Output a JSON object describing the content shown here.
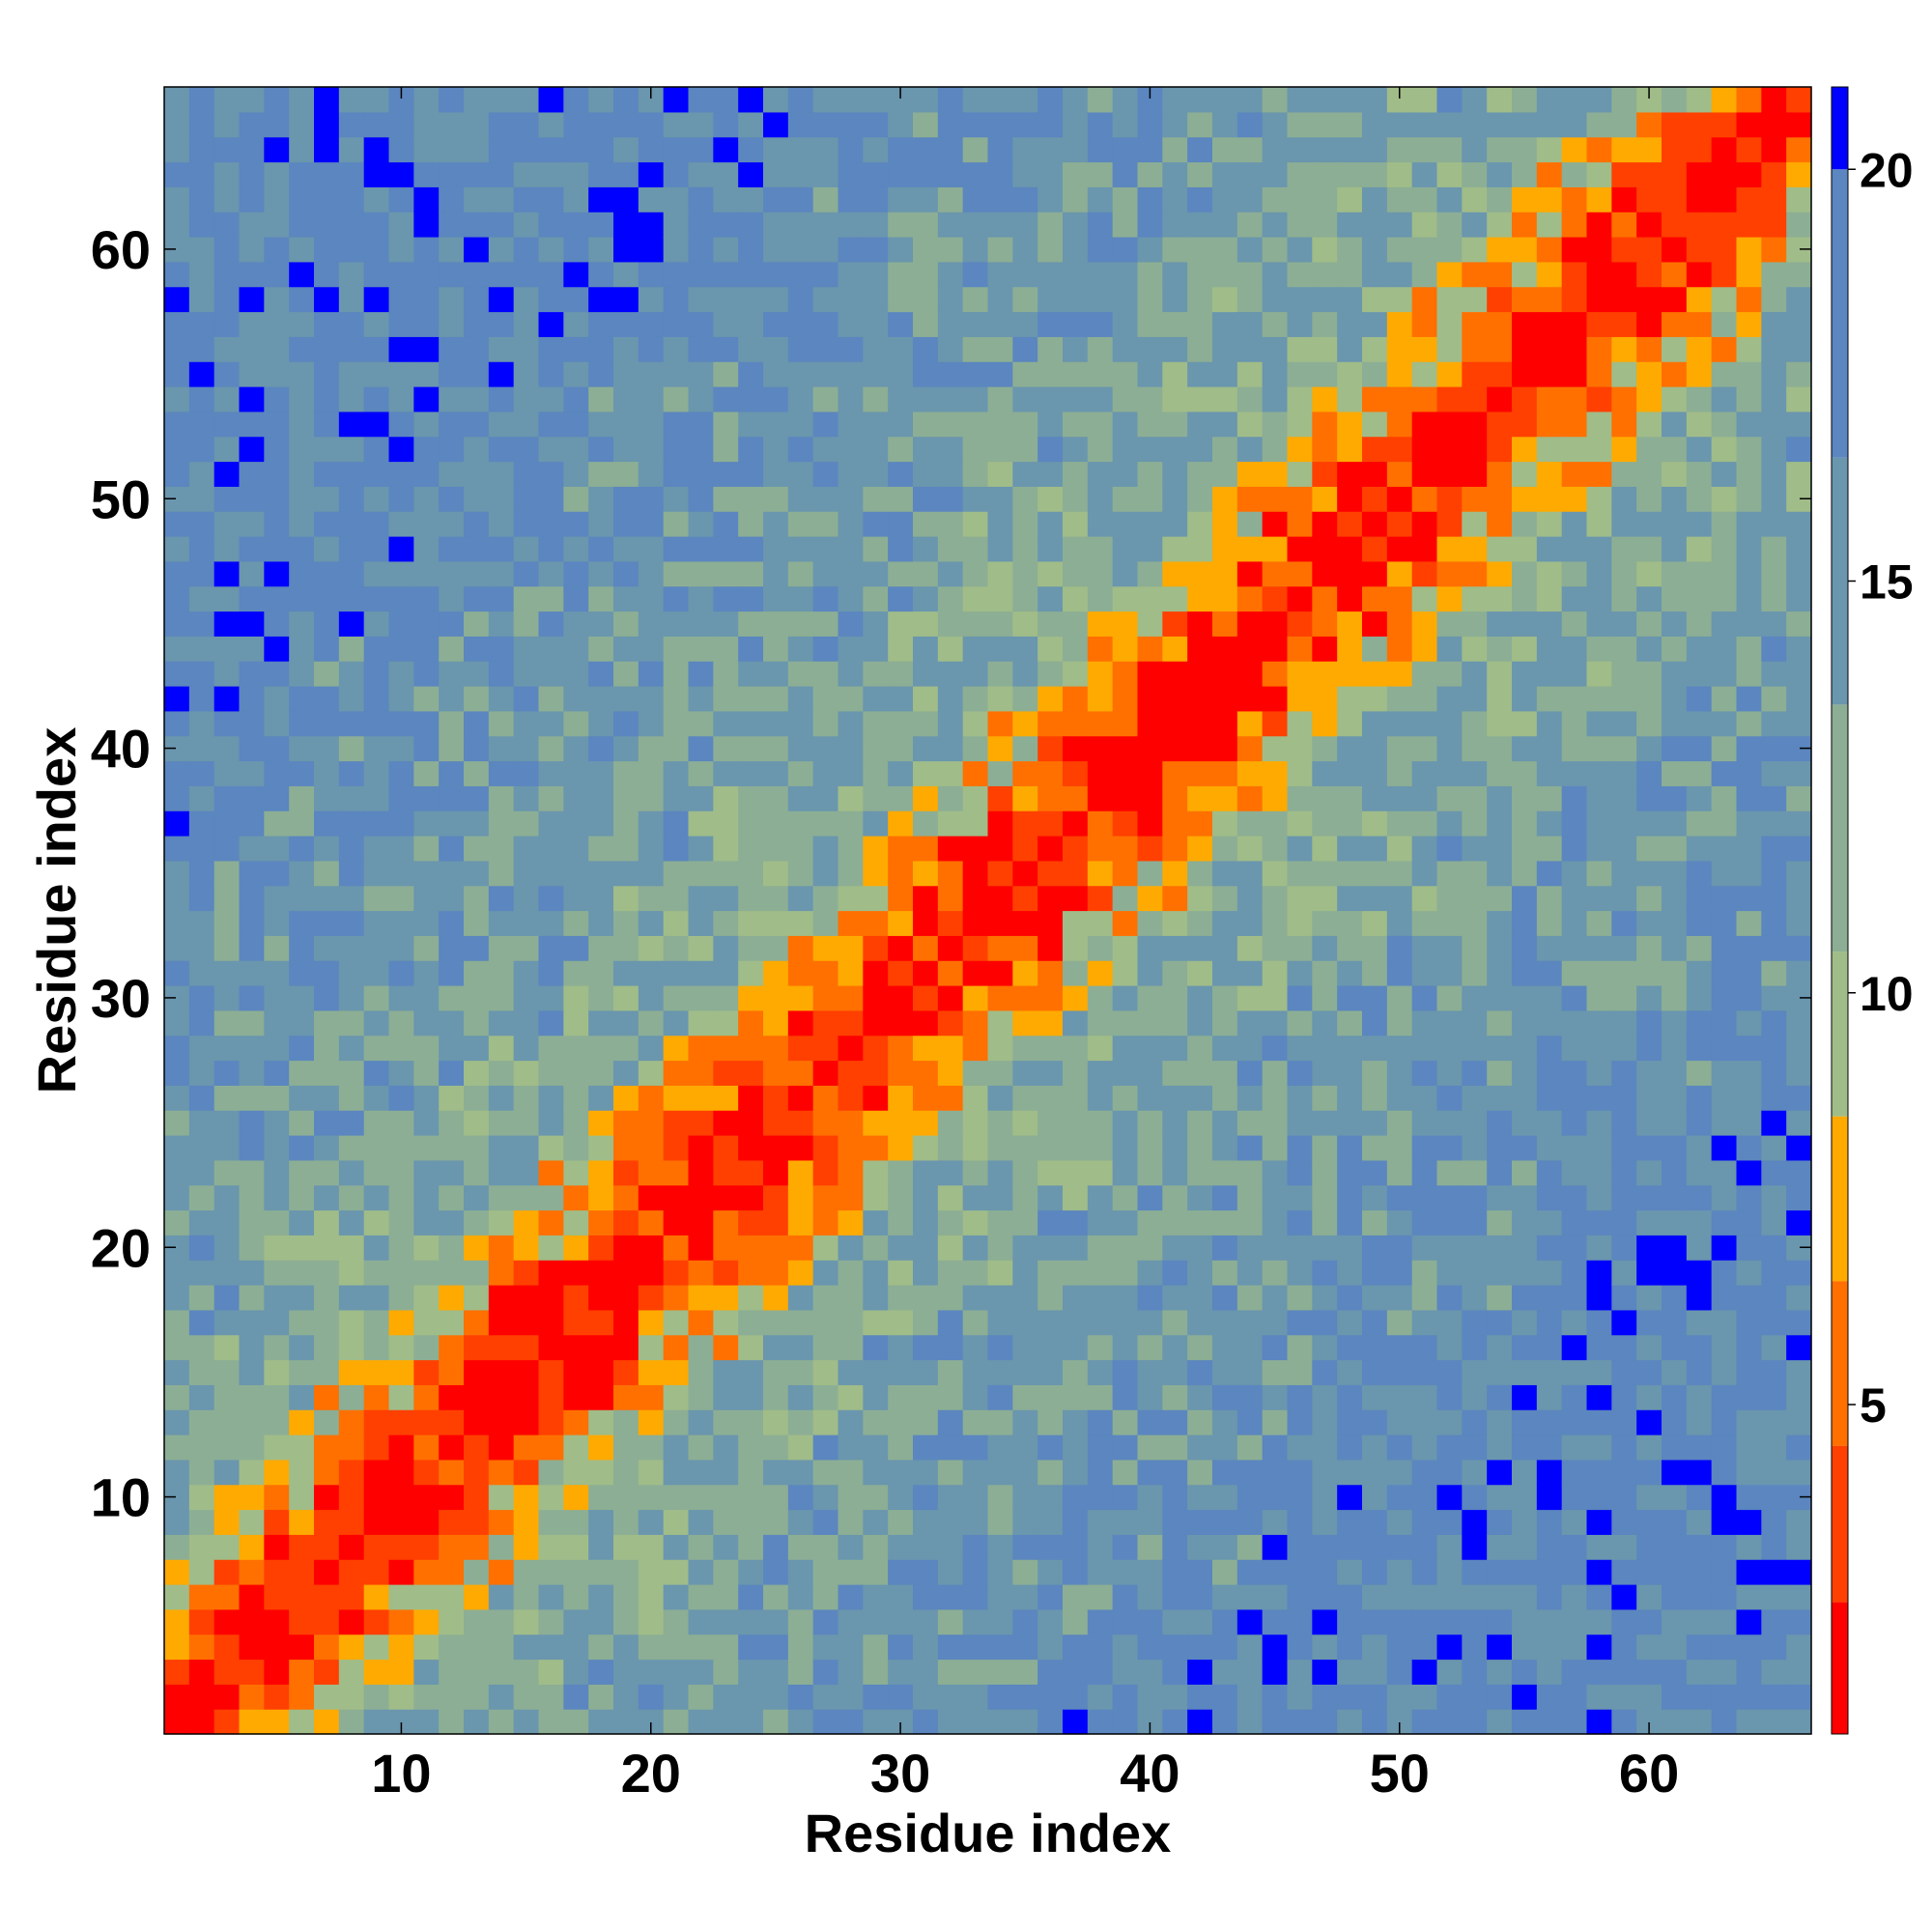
{
  "chart_data": {
    "type": "heatmap",
    "title": "",
    "xlabel": "Residue index",
    "ylabel": "Residue index",
    "n_residues": 66,
    "xlim": [
      0.5,
      66.5
    ],
    "ylim": [
      0.5,
      66.5
    ],
    "x_ticks": [
      10,
      20,
      30,
      40,
      50,
      60
    ],
    "y_ticks": [
      10,
      20,
      30,
      40,
      50,
      60
    ],
    "x_tick_labels": [
      "10",
      "20",
      "30",
      "40",
      "50",
      "60"
    ],
    "y_tick_labels": [
      "10",
      "20",
      "30",
      "40",
      "50",
      "60"
    ],
    "colorbar": {
      "range": [
        1,
        21
      ],
      "ticks": [
        5,
        10,
        15,
        20
      ],
      "tick_labels": [
        "5",
        "10",
        "15",
        "20"
      ],
      "placement": "right"
    },
    "color_levels": [
      {
        "max": 2.6,
        "color": "#ff0000"
      },
      {
        "max": 4.5,
        "color": "#ff4000"
      },
      {
        "max": 6.5,
        "color": "#ff7000"
      },
      {
        "max": 8.5,
        "color": "#ffaa00"
      },
      {
        "max": 10.5,
        "color": "#a0bc88"
      },
      {
        "max": 13.5,
        "color": "#8cae94"
      },
      {
        "max": 16.5,
        "color": "#6a96ae"
      },
      {
        "max": 20.0,
        "color": "#5b86bf"
      },
      {
        "max": 99,
        "color": "#0000ff"
      }
    ],
    "distance_matrix_description": "symmetric residue-residue distance map"
  }
}
